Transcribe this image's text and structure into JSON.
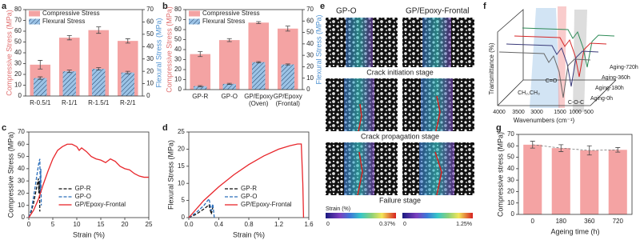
{
  "chart_data": [
    {
      "type": "bar_dual",
      "label": "a",
      "categories": [
        "R-0.5/1",
        "R-1/1",
        "R-1.5/1",
        "R-2/1"
      ],
      "series": [
        {
          "name": "Compressive Stress",
          "color": "#f4a3a3",
          "values": [
            29,
            54,
            61,
            51
          ],
          "errors": [
            4,
            2,
            3,
            2
          ]
        },
        {
          "name": "Flexural Stress",
          "color": "#9cc3e6",
          "axis": "y2",
          "values": [
            14.5,
            20,
            22,
            19
          ],
          "errors": [
            1,
            1,
            1,
            1
          ]
        }
      ],
      "ylabel": "Compressive Stress (MPa)",
      "ylabel_color": "#e07070",
      "y2label": "Flexural Stress (MPa)",
      "y2label_color": "#4f92d2",
      "ylim": [
        0,
        80
      ],
      "yticks": [
        0,
        10,
        20,
        30,
        40,
        50,
        60,
        70,
        80
      ],
      "y2lim": [
        0,
        70
      ],
      "y2ticks": [
        0,
        10,
        20,
        30,
        40,
        50,
        60,
        70
      ],
      "legend": "upper left"
    },
    {
      "type": "bar_dual",
      "label": "b",
      "categories": [
        "GP-R",
        "GP-O",
        "GP/Epoxy\n(Oven)",
        "GP/Epoxy\n(Frontal)"
      ],
      "series": [
        {
          "name": "Compressive Stress",
          "color": "#f4a3a3",
          "values": [
            35.5,
            49.5,
            67,
            61
          ],
          "errors": [
            2.5,
            1.5,
            1,
            2.5
          ]
        },
        {
          "name": "Flexural Stress",
          "color": "#9cc3e6",
          "axis": "y2",
          "values": [
            3,
            5,
            24,
            22
          ],
          "errors": [
            0.5,
            0.5,
            0.5,
            0.5
          ]
        }
      ],
      "ylabel": "Compressive Stress (MPa)",
      "ylabel_color": "#e07070",
      "y2label": "Flexural Stress (MPa)",
      "y2label_color": "#4f92d2",
      "ylim": [
        0,
        80
      ],
      "yticks": [
        0,
        10,
        20,
        30,
        40,
        50,
        60,
        70,
        80
      ],
      "y2lim": [
        0,
        70
      ],
      "y2ticks": [
        0,
        10,
        20,
        30,
        40,
        50,
        60,
        70
      ],
      "legend": "upper left"
    },
    {
      "type": "line",
      "label": "c",
      "xlabel": "Strain (%)",
      "ylabel": "Compressive Stress (MPa)",
      "xlim": [
        0,
        25
      ],
      "xticks": [
        0,
        5,
        10,
        15,
        20,
        25
      ],
      "ylim": [
        0,
        70
      ],
      "yticks": [
        0,
        10,
        20,
        30,
        40,
        50,
        60,
        70
      ],
      "legend": "lower center",
      "series": [
        {
          "name": "GP-R",
          "color": "#111111",
          "linestyle": "dashed",
          "x": [
            0,
            0.5,
            1,
            1.5,
            1.8,
            2,
            2.1,
            2.2,
            2.3
          ],
          "values": [
            0,
            5,
            12,
            22,
            28,
            32,
            20,
            30,
            5
          ]
        },
        {
          "name": "GP-O",
          "color": "#2c6fbb",
          "linestyle": "dashed",
          "x": [
            0,
            0.6,
            1.2,
            1.7,
            2.1,
            2.3,
            2.4,
            2.5,
            2.6
          ],
          "values": [
            0,
            8,
            22,
            35,
            45,
            48,
            20,
            40,
            10
          ]
        },
        {
          "name": "GP/Epoxy-Frontal",
          "color": "#e8262b",
          "linestyle": "solid",
          "x": [
            0,
            1,
            2,
            3,
            4,
            5,
            6,
            7,
            8,
            9,
            10,
            10.5,
            11,
            12,
            13,
            14,
            15,
            16,
            17,
            18,
            19,
            20,
            21,
            22,
            23,
            24,
            25
          ],
          "values": [
            0,
            6,
            15,
            27,
            38,
            48,
            55,
            58,
            60,
            60,
            58,
            55,
            57,
            54,
            50,
            48,
            47,
            45,
            48,
            46,
            42,
            40,
            39,
            36,
            34,
            33,
            33
          ]
        }
      ]
    },
    {
      "type": "line",
      "label": "d",
      "xlabel": "Strain (%)",
      "ylabel": "Flexural Stress (MPa)",
      "xlim": [
        0,
        1.6
      ],
      "xticks": [
        {
          "value": 0,
          "label": "0.0"
        },
        {
          "value": 0.4,
          "label": "0.4"
        },
        {
          "value": 0.8,
          "label": "0.8"
        },
        {
          "value": 1.2,
          "label": "1.2"
        },
        {
          "value": 1.6,
          "label": "1.6"
        }
      ],
      "ylim": [
        0,
        25
      ],
      "yticks": [
        0,
        5,
        10,
        15,
        20,
        25
      ],
      "legend": "lower right",
      "series": [
        {
          "name": "GP-R",
          "color": "#111111",
          "linestyle": "dashed",
          "x": [
            0,
            0.1,
            0.2,
            0.27,
            0.3,
            0.32
          ],
          "values": [
            0,
            1,
            2.5,
            3.7,
            1,
            3
          ]
        },
        {
          "name": "GP-O",
          "color": "#2c6fbb",
          "linestyle": "dashed",
          "x": [
            0,
            0.1,
            0.2,
            0.27,
            0.3,
            0.32,
            0.34
          ],
          "values": [
            0,
            1.5,
            3.5,
            5.5,
            2,
            4,
            0
          ]
        },
        {
          "name": "GP/Epoxy-Frontal",
          "color": "#e8262b",
          "linestyle": "solid",
          "x": [
            0,
            0.2,
            0.4,
            0.6,
            0.8,
            1,
            1.2,
            1.35,
            1.45,
            1.5,
            1.52,
            1.53
          ],
          "values": [
            0,
            5,
            9,
            12.5,
            15.5,
            18,
            20,
            21,
            21.5,
            21.5,
            10,
            0
          ]
        }
      ]
    },
    {
      "type": "bar",
      "label": "g",
      "categories": [
        "0",
        "180",
        "360",
        "720"
      ],
      "values": [
        61,
        58,
        56,
        56.5
      ],
      "errors": [
        3,
        3,
        4,
        2
      ],
      "color": "#f4a3a3",
      "connect": true,
      "xlabel": "Ageing time (h)",
      "ylabel": "Compressive stress (MPa)",
      "ylim": [
        0,
        70
      ],
      "yticks": [
        0,
        10,
        20,
        30,
        40,
        50,
        60,
        70
      ]
    }
  ],
  "panel_e": {
    "label": "e",
    "columns": [
      "GP-O",
      "GP/Epoxy-Frontal"
    ],
    "stages": [
      "Crack initiation stage",
      "Crack propagation stage",
      "Failure stage"
    ],
    "colorbar_title": "Strain (%)",
    "colorbars": [
      {
        "min": "0",
        "max": "0.37%"
      },
      {
        "min": "0",
        "max": "1.25%"
      }
    ]
  },
  "panel_f": {
    "label": "f",
    "ylabel": "Transmittance (%)",
    "xlabel": "Wavenumbers (cm⁻¹)",
    "xticks": [
      "4000",
      "3500",
      "3000",
      "1500",
      "1000",
      "500"
    ],
    "annotations": [
      "CH₂,CH₃",
      "C=O",
      "C-O-C"
    ],
    "series": [
      "Aging-720h",
      "Aging-360h",
      "Aging-180h",
      "Aging-0h"
    ]
  }
}
